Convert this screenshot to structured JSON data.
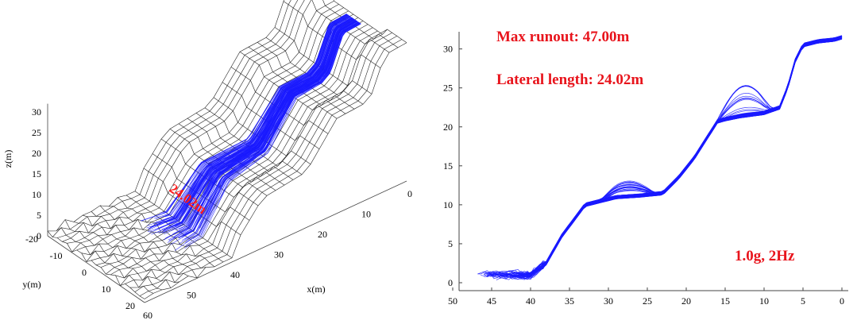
{
  "chart_data": [
    {
      "type": "surface3d",
      "xlabel": "x(m)",
      "ylabel": "y(m)",
      "zlabel": "z(m)",
      "x_ticks": [
        "0",
        "10",
        "20",
        "30",
        "40",
        "50",
        "60"
      ],
      "y_ticks": [
        "-20",
        "-10",
        "0",
        "10",
        "20"
      ],
      "z_ticks": [
        "0",
        "5",
        "10",
        "15",
        "20",
        "25",
        "30"
      ],
      "xlim": [
        0,
        60
      ],
      "ylim": [
        -20,
        20
      ],
      "zlim": [
        0,
        30
      ],
      "annotation": "24.02m",
      "annotation_color": "#ff1a1a",
      "mesh_color": "#222222",
      "trajectory_color": "#1a1aff",
      "terrain_profile": [
        [
          0,
          31.5
        ],
        [
          5,
          31
        ],
        [
          8,
          23
        ],
        [
          10,
          21.5
        ],
        [
          16,
          21
        ],
        [
          23,
          11.5
        ],
        [
          33,
          10
        ],
        [
          40,
          1
        ],
        [
          47,
          1
        ]
      ],
      "trajectory_count": 120
    },
    {
      "type": "line",
      "xlim": [
        50,
        0
      ],
      "ylim": [
        0,
        32
      ],
      "x_ticks": [
        "50",
        "45",
        "40",
        "35",
        "30",
        "25",
        "20",
        "15",
        "10",
        "5",
        "0"
      ],
      "y_ticks": [
        "0",
        "5",
        "10",
        "15",
        "20",
        "25",
        "30"
      ],
      "annotations": [
        "Max runout: 47.00m",
        "Lateral length: 24.02m",
        "1.0g, 2Hz"
      ],
      "annotation_color": "#e8141c",
      "series_color": "#1a1aff",
      "profile": [
        [
          0,
          31.5
        ],
        [
          1,
          31.2
        ],
        [
          3,
          31
        ],
        [
          5,
          30.5
        ],
        [
          6,
          28.5
        ],
        [
          7,
          25
        ],
        [
          8,
          22.5
        ],
        [
          10,
          21.8
        ],
        [
          13,
          21.4
        ],
        [
          15,
          21
        ],
        [
          16,
          20.7
        ],
        [
          19,
          16
        ],
        [
          21,
          13.5
        ],
        [
          23,
          11.5
        ],
        [
          26,
          11.2
        ],
        [
          29,
          11
        ],
        [
          33,
          10
        ],
        [
          36,
          6
        ],
        [
          38,
          2.5
        ],
        [
          40,
          1
        ],
        [
          44,
          1
        ],
        [
          47,
          1
        ]
      ],
      "trajectory_count": 60
    }
  ]
}
